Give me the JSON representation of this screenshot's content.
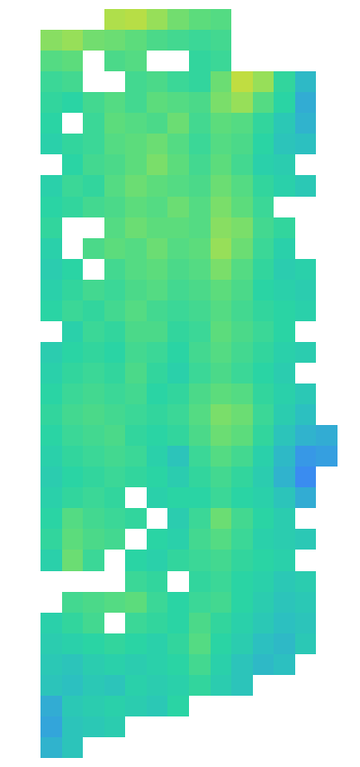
{
  "chart_data": {
    "type": "heatmap",
    "tick_labels": false,
    "grid": false,
    "zlim": [
      0,
      100
    ],
    "cells": [
      [
        null,
        null,
        null,
        84,
        86,
        80,
        75,
        72,
        70,
        null,
        null,
        null,
        null,
        null
      ],
      [
        78,
        80,
        75,
        74,
        72,
        68,
        66,
        64,
        66,
        null,
        null,
        null,
        null,
        null
      ],
      [
        70,
        72,
        null,
        68,
        70,
        null,
        null,
        62,
        64,
        null,
        null,
        null,
        null,
        null
      ],
      [
        64,
        66,
        null,
        null,
        66,
        68,
        64,
        62,
        74,
        88,
        80,
        62,
        48,
        null
      ],
      [
        62,
        60,
        66,
        70,
        66,
        72,
        70,
        68,
        76,
        80,
        70,
        60,
        44,
        null
      ],
      [
        60,
        null,
        64,
        72,
        70,
        68,
        74,
        66,
        72,
        70,
        62,
        54,
        46,
        null
      ],
      [
        58,
        62,
        64,
        70,
        72,
        74,
        70,
        64,
        70,
        68,
        60,
        52,
        50,
        null
      ],
      [
        null,
        60,
        66,
        68,
        72,
        76,
        72,
        66,
        72,
        66,
        58,
        56,
        null,
        null
      ],
      [
        58,
        64,
        62,
        70,
        74,
        72,
        70,
        68,
        74,
        70,
        62,
        58,
        54,
        null
      ],
      [
        60,
        62,
        66,
        68,
        72,
        70,
        74,
        70,
        76,
        72,
        64,
        null,
        null,
        null
      ],
      [
        62,
        null,
        null,
        70,
        74,
        72,
        72,
        70,
        78,
        76,
        66,
        62,
        null,
        null
      ],
      [
        58,
        null,
        68,
        72,
        70,
        74,
        70,
        72,
        80,
        74,
        64,
        58,
        null,
        null
      ],
      [
        56,
        60,
        null,
        66,
        70,
        72,
        68,
        70,
        76,
        70,
        62,
        56,
        58,
        null
      ],
      [
        58,
        62,
        66,
        64,
        68,
        70,
        66,
        68,
        72,
        68,
        60,
        58,
        56,
        null
      ],
      [
        60,
        64,
        62,
        66,
        70,
        66,
        64,
        66,
        70,
        66,
        62,
        60,
        58,
        null
      ],
      [
        null,
        58,
        64,
        62,
        68,
        68,
        62,
        64,
        72,
        68,
        64,
        60,
        null,
        null
      ],
      [
        56,
        60,
        62,
        60,
        66,
        64,
        60,
        66,
        70,
        66,
        62,
        58,
        56,
        null
      ],
      [
        58,
        62,
        64,
        62,
        68,
        62,
        58,
        64,
        68,
        64,
        60,
        56,
        null,
        null
      ],
      [
        60,
        64,
        66,
        64,
        66,
        60,
        62,
        68,
        72,
        70,
        62,
        58,
        54,
        null
      ],
      [
        62,
        66,
        68,
        66,
        64,
        62,
        64,
        70,
        76,
        74,
        64,
        56,
        50,
        null
      ],
      [
        60,
        64,
        66,
        68,
        62,
        60,
        62,
        68,
        74,
        72,
        62,
        52,
        46,
        44
      ],
      [
        58,
        62,
        64,
        66,
        64,
        58,
        52,
        64,
        70,
        66,
        58,
        48,
        38,
        40
      ],
      [
        56,
        60,
        62,
        64,
        62,
        60,
        56,
        62,
        66,
        62,
        56,
        46,
        34,
        null
      ],
      [
        58,
        62,
        64,
        62,
        null,
        58,
        60,
        60,
        64,
        60,
        58,
        52,
        44,
        null
      ],
      [
        60,
        70,
        66,
        64,
        62,
        null,
        56,
        64,
        74,
        66,
        60,
        56,
        null,
        null
      ],
      [
        62,
        72,
        68,
        66,
        null,
        60,
        58,
        66,
        70,
        64,
        58,
        56,
        54,
        null
      ],
      [
        58,
        74,
        64,
        null,
        60,
        58,
        62,
        64,
        66,
        62,
        60,
        58,
        null,
        null
      ],
      [
        null,
        null,
        null,
        null,
        64,
        62,
        null,
        62,
        64,
        60,
        58,
        54,
        56,
        null
      ],
      [
        null,
        66,
        68,
        70,
        72,
        64,
        60,
        64,
        66,
        60,
        56,
        52,
        54,
        null
      ],
      [
        58,
        62,
        66,
        null,
        64,
        62,
        60,
        68,
        62,
        58,
        54,
        50,
        52,
        null
      ],
      [
        56,
        58,
        60,
        62,
        60,
        58,
        62,
        70,
        60,
        56,
        50,
        48,
        54,
        null
      ],
      [
        54,
        52,
        56,
        58,
        56,
        58,
        60,
        66,
        58,
        52,
        48,
        50,
        null,
        null
      ],
      [
        52,
        50,
        54,
        52,
        58,
        56,
        58,
        62,
        56,
        52,
        null,
        null,
        null,
        null
      ],
      [
        44,
        54,
        56,
        58,
        56,
        54,
        60,
        null,
        null,
        null,
        null,
        null,
        null,
        null
      ],
      [
        42,
        52,
        54,
        56,
        null,
        null,
        null,
        null,
        null,
        null,
        null,
        null,
        null,
        null
      ],
      [
        46,
        52,
        null,
        null,
        null,
        null,
        null,
        null,
        null,
        null,
        null,
        null,
        null,
        null
      ]
    ]
  }
}
